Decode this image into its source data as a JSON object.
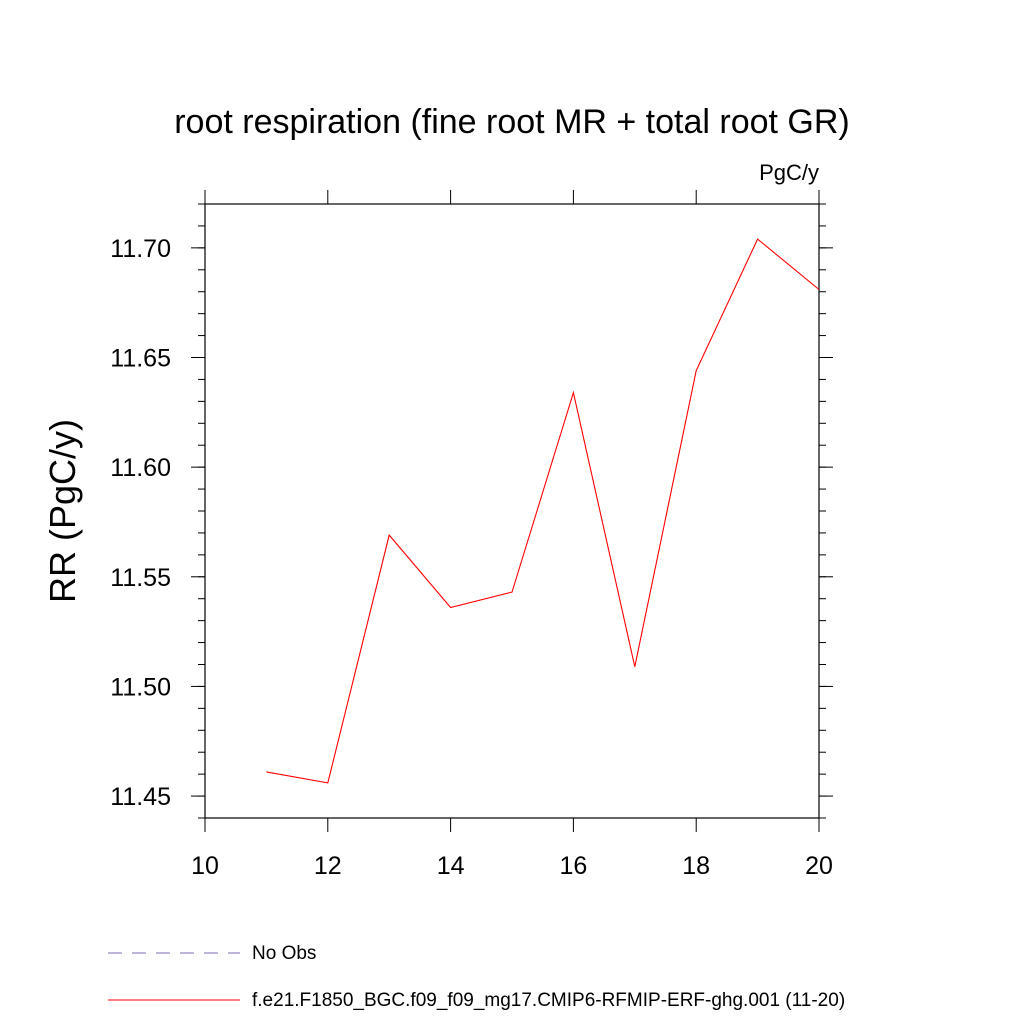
{
  "chart_data": {
    "type": "line",
    "title": "root respiration (fine root MR + total root GR)",
    "units": "PgC/y",
    "ylabel": "RR  (PgC/y)",
    "xlabel": "",
    "xlim": [
      10,
      20
    ],
    "ylim": [
      11.44,
      11.72
    ],
    "xticks": [
      10,
      12,
      14,
      16,
      18,
      20
    ],
    "xtick_labels": [
      "10",
      "12",
      "14",
      "16",
      "18",
      "20"
    ],
    "yticks": [
      11.45,
      11.5,
      11.55,
      11.6,
      11.65,
      11.7
    ],
    "ytick_labels": [
      "11.45",
      "11.50",
      "11.55",
      "11.60",
      "11.65",
      "11.70"
    ],
    "series": [
      {
        "name": "f.e21.F1850_BGC.f09_f09_mg17.CMIP6-RFMIP-ERF-ghg.001 (11-20)",
        "color": "#ff0000",
        "x": [
          11,
          12,
          13,
          14,
          15,
          16,
          17,
          18,
          19,
          20
        ],
        "values": [
          11.461,
          11.456,
          11.569,
          11.536,
          11.543,
          11.634,
          11.509,
          11.644,
          11.704,
          11.681
        ]
      }
    ],
    "legend": [
      {
        "label": "No Obs",
        "style": "dashed",
        "color": "#7b68b0"
      },
      {
        "label": "f.e21.F1850_BGC.f09_f09_mg17.CMIP6-RFMIP-ERF-ghg.001 (11-20)",
        "style": "solid",
        "color": "#ff0000"
      }
    ]
  }
}
